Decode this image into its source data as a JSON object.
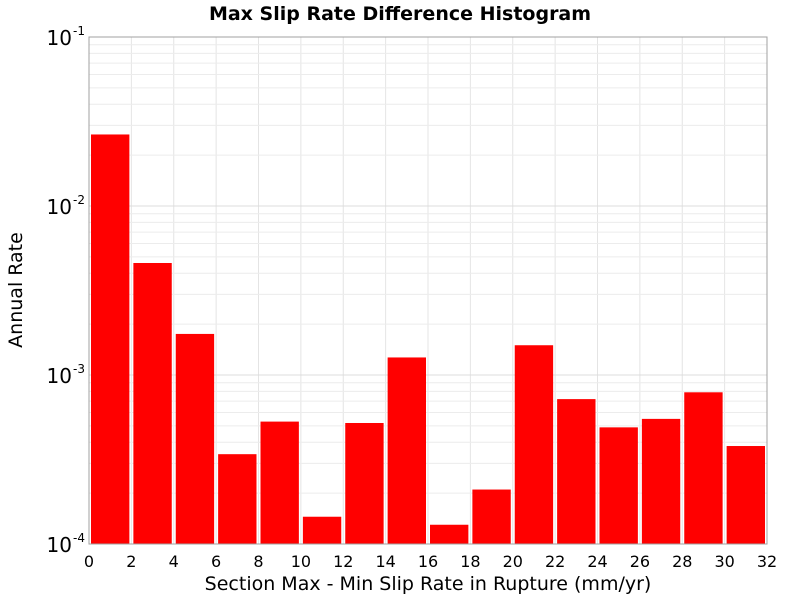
{
  "chart_data": {
    "type": "bar",
    "title": "Max Slip Rate Difference Histogram",
    "xlabel": "Section Max - Min Slip Rate in Rupture (mm/yr)",
    "ylabel": "Annual Rate",
    "xlim": [
      0,
      32
    ],
    "ylim": [
      0.0001,
      0.1
    ],
    "yscale": "log",
    "grid": true,
    "bar_color": "#ff0000",
    "bin_width": 2,
    "x": [
      1,
      3,
      5,
      7,
      9,
      11,
      13,
      15,
      17,
      19,
      21,
      23,
      25,
      27,
      29,
      31
    ],
    "values": [
      0.0265,
      0.0046,
      0.00175,
      0.00034,
      0.00053,
      0.000145,
      0.00052,
      0.00127,
      0.00013,
      0.00021,
      0.0015,
      0.00072,
      0.00049,
      0.00055,
      0.00079,
      0.00038
    ],
    "xticks": [
      "0",
      "2",
      "4",
      "6",
      "8",
      "10",
      "12",
      "14",
      "16",
      "18",
      "20",
      "22",
      "24",
      "26",
      "28",
      "30",
      "32"
    ],
    "yticks": [
      {
        "base": "10",
        "exp": "-4"
      },
      {
        "base": "10",
        "exp": "-3"
      },
      {
        "base": "10",
        "exp": "-2"
      },
      {
        "base": "10",
        "exp": "-1"
      }
    ]
  }
}
